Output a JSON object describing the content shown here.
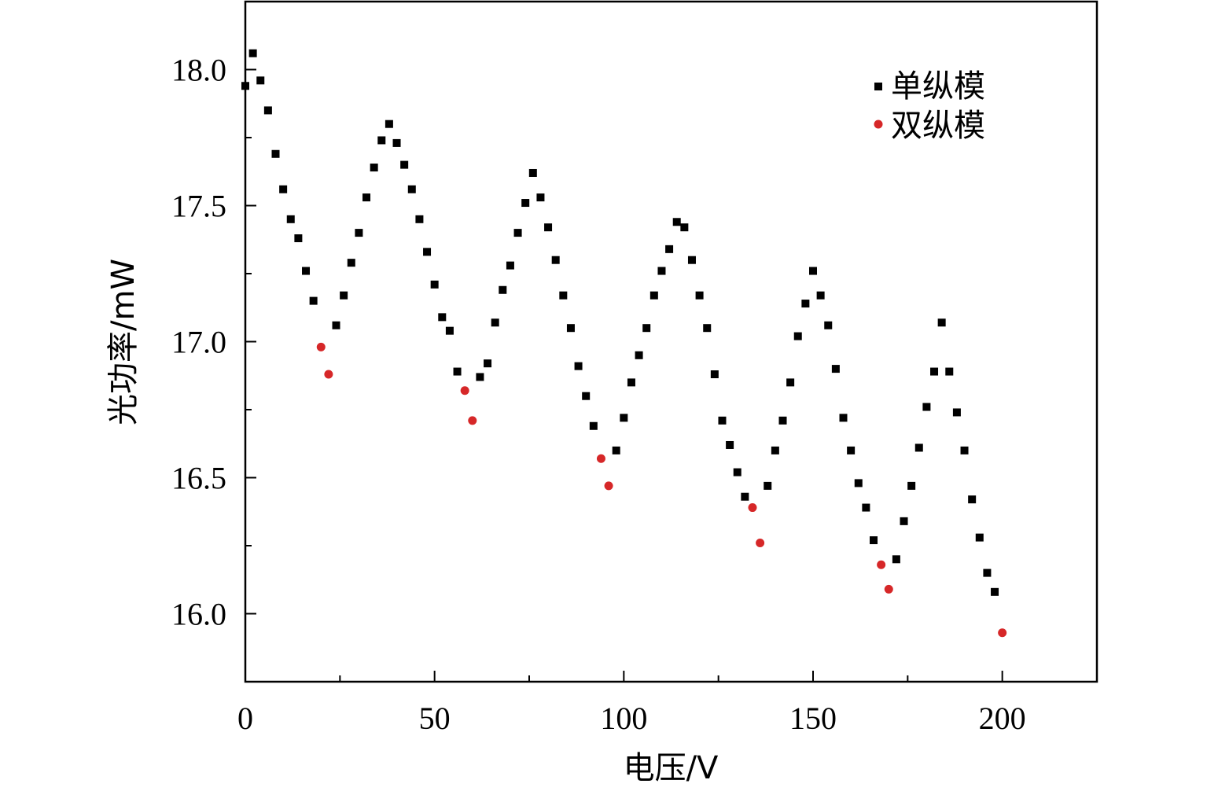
{
  "chart_data": {
    "type": "scatter",
    "title": "",
    "xlabel": "电压/V",
    "ylabel": "光功率/mW",
    "xlim": [
      0,
      225
    ],
    "ylim": [
      15.75,
      18.25
    ],
    "x_ticks": [
      0,
      50,
      100,
      150,
      200
    ],
    "x_tick_labels": [
      "0",
      "50",
      "100",
      "150",
      "200"
    ],
    "y_ticks": [
      16.0,
      16.5,
      17.0,
      17.5,
      18.0
    ],
    "y_tick_labels": [
      "16.0",
      "16.5",
      "17.0",
      "17.5",
      "18.0"
    ],
    "grid": false,
    "legend_position": "top-right",
    "series": [
      {
        "name": "单纵模",
        "marker": "square",
        "color": "#000000",
        "x": [
          0,
          2,
          4,
          6,
          8,
          10,
          12,
          14,
          16,
          18,
          24,
          26,
          28,
          30,
          32,
          34,
          36,
          38,
          40,
          42,
          44,
          46,
          48,
          50,
          52,
          54,
          56,
          62,
          64,
          66,
          68,
          70,
          72,
          74,
          76,
          78,
          80,
          82,
          84,
          86,
          88,
          90,
          92,
          98,
          100,
          102,
          104,
          106,
          108,
          110,
          112,
          114,
          116,
          118,
          120,
          122,
          124,
          126,
          128,
          130,
          132,
          138,
          140,
          142,
          144,
          146,
          148,
          150,
          152,
          154,
          156,
          158,
          160,
          162,
          164,
          166,
          172,
          174,
          176,
          178,
          180,
          182,
          184,
          186,
          188,
          190,
          192,
          194,
          196,
          198
        ],
        "y": [
          17.94,
          18.06,
          17.96,
          17.85,
          17.69,
          17.56,
          17.45,
          17.38,
          17.26,
          17.15,
          17.06,
          17.17,
          17.29,
          17.4,
          17.53,
          17.64,
          17.74,
          17.8,
          17.73,
          17.65,
          17.56,
          17.45,
          17.33,
          17.21,
          17.09,
          17.04,
          16.89,
          16.87,
          16.92,
          17.07,
          17.19,
          17.28,
          17.4,
          17.51,
          17.62,
          17.53,
          17.42,
          17.3,
          17.17,
          17.05,
          16.91,
          16.8,
          16.69,
          16.6,
          16.72,
          16.85,
          16.95,
          17.05,
          17.17,
          17.26,
          17.34,
          17.44,
          17.42,
          17.3,
          17.17,
          17.05,
          16.88,
          16.71,
          16.62,
          16.52,
          16.43,
          16.47,
          16.6,
          16.71,
          16.85,
          17.02,
          17.14,
          17.26,
          17.17,
          17.06,
          16.9,
          16.72,
          16.6,
          16.48,
          16.39,
          16.27,
          16.2,
          16.34,
          16.47,
          16.61,
          16.76,
          16.89,
          17.07,
          16.89,
          16.74,
          16.6,
          16.42,
          16.28,
          16.15,
          16.08
        ]
      },
      {
        "name": "双纵模",
        "marker": "circle",
        "color": "#d62728",
        "x": [
          20,
          22,
          58,
          60,
          94,
          96,
          134,
          136,
          168,
          170,
          200
        ],
        "y": [
          16.98,
          16.88,
          16.82,
          16.71,
          16.57,
          16.47,
          16.39,
          16.26,
          16.18,
          16.09,
          15.93
        ]
      }
    ]
  }
}
